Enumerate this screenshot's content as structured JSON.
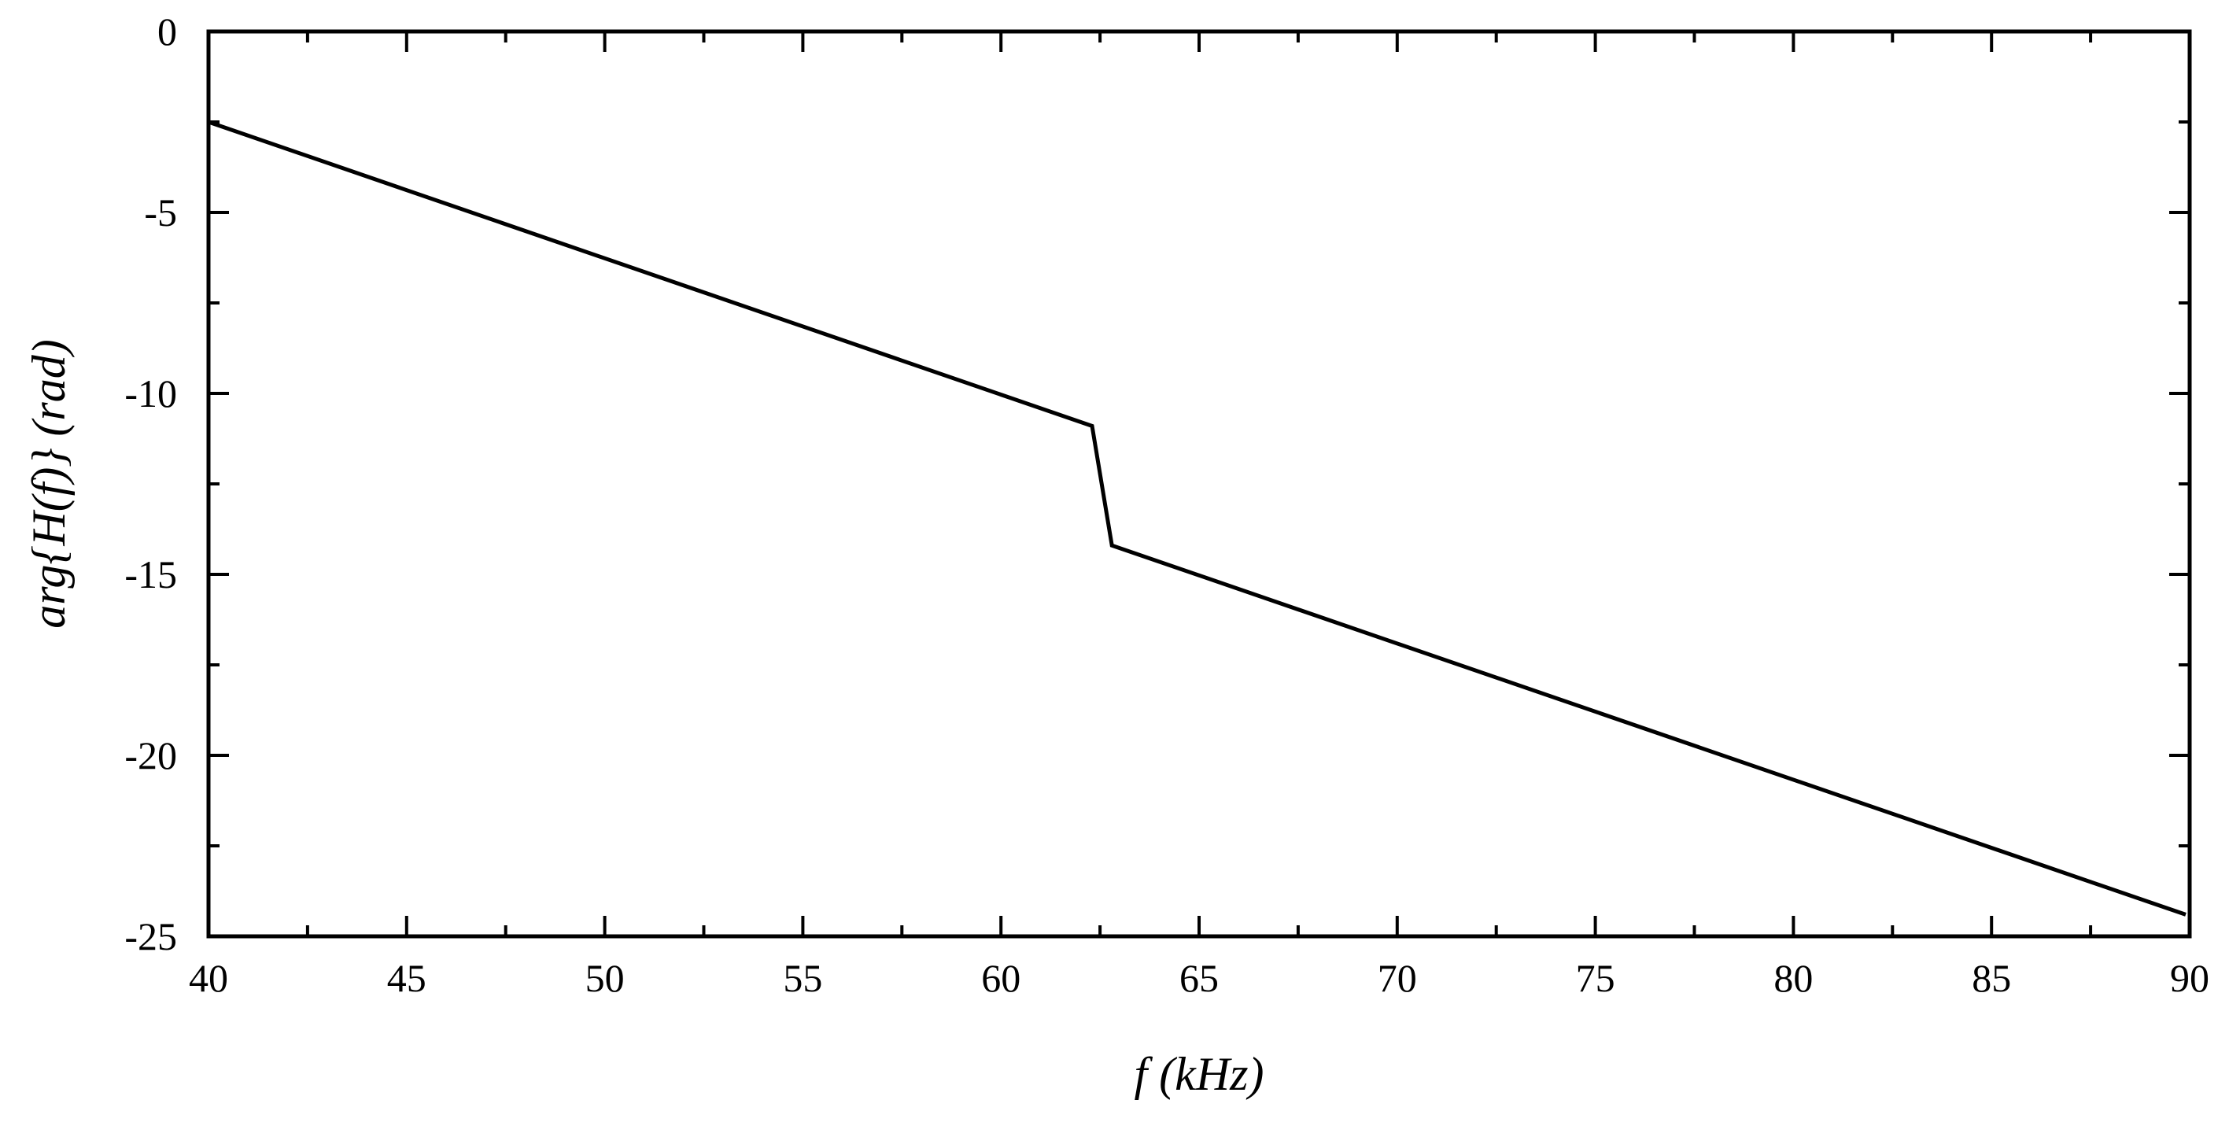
{
  "chart_data": {
    "type": "line",
    "title": "",
    "xlabel": "f (kHz)",
    "ylabel": "arg{H(f)} (rad)",
    "xlim": [
      40,
      90
    ],
    "ylim": [
      -25,
      0
    ],
    "xticks": [
      40,
      45,
      50,
      55,
      60,
      65,
      70,
      75,
      80,
      85,
      90
    ],
    "yticks": [
      0,
      -5,
      -10,
      -15,
      -20,
      -25
    ],
    "xtick_labels": [
      "40",
      "45",
      "50",
      "55",
      "60",
      "65",
      "70",
      "75",
      "80",
      "85",
      "90"
    ],
    "ytick_labels": [
      "0",
      "-5",
      "-10",
      "-15",
      "-20",
      "-25"
    ],
    "x_minor_step": 2.5,
    "y_minor_step": 2.5,
    "grid": false,
    "legend": "none",
    "series": [
      {
        "color": "#000000",
        "x": [
          40.0,
          62.3,
          62.8,
          89.9
        ],
        "y": [
          -2.5,
          -10.9,
          -14.2,
          -24.4
        ]
      }
    ]
  }
}
